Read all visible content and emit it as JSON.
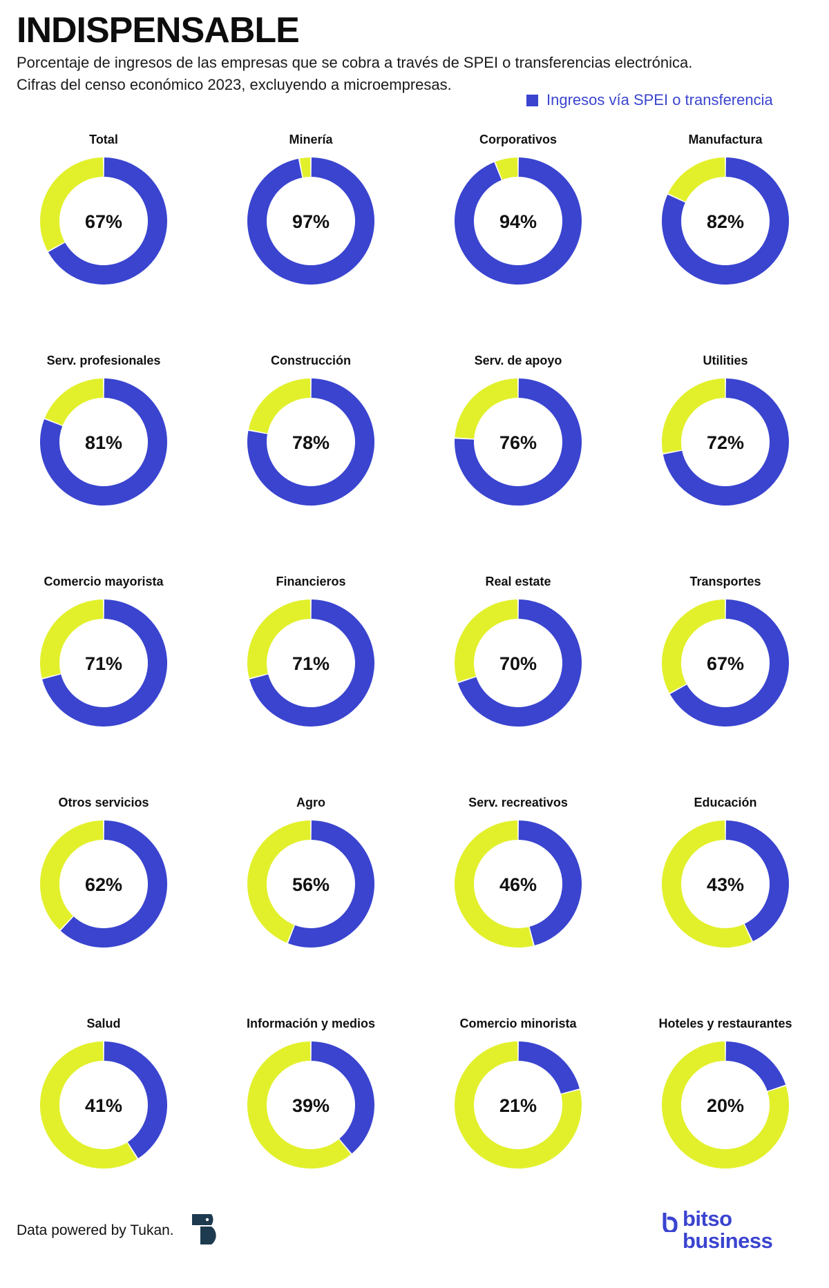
{
  "header": {
    "title": "INDISPENSABLE",
    "subtitle_line1": "Porcentaje de ingresos de las empresas que se cobra a través de SPEI o transferencias electrónica.",
    "subtitle_line2": "Cifras del censo económico 2023, excluyendo a microempresas."
  },
  "legend": {
    "label": "Ingresos vía SPEI o transferencia",
    "color": "#3a44cf"
  },
  "colors": {
    "primary": "#3a44cf",
    "secondary": "#e2f02c",
    "text": "#111111"
  },
  "chart_data": {
    "type": "pie",
    "variant": "donut",
    "title": "INDISPENSABLE",
    "unit": "%",
    "series_name": "Ingresos vía SPEI o transferencia",
    "categories": [
      "Total",
      "Minería",
      "Corporativos",
      "Manufactura",
      "Serv. profesionales",
      "Construcción",
      "Serv. de apoyo",
      "Utilities",
      "Comercio mayorista",
      "Financieros",
      "Real estate",
      "Transportes",
      "Otros servicios",
      "Agro",
      "Serv. recreativos",
      "Educación",
      "Salud",
      "Información y medios",
      "Comercio minorista",
      "Hoteles y restaurantes"
    ],
    "values": [
      67,
      97,
      94,
      82,
      81,
      78,
      76,
      72,
      71,
      71,
      70,
      67,
      62,
      56,
      46,
      43,
      41,
      39,
      21,
      20
    ],
    "labels": [
      "67%",
      "97%",
      "94%",
      "82%",
      "81%",
      "78%",
      "76%",
      "72%",
      "71%",
      "71%",
      "70%",
      "67%",
      "62%",
      "56%",
      "46%",
      "43%",
      "41%",
      "39%",
      "21%",
      "20%"
    ]
  },
  "footer": {
    "credit": "Data powered by Tukan.",
    "brand_line1": "bitso",
    "brand_line2": "business"
  }
}
